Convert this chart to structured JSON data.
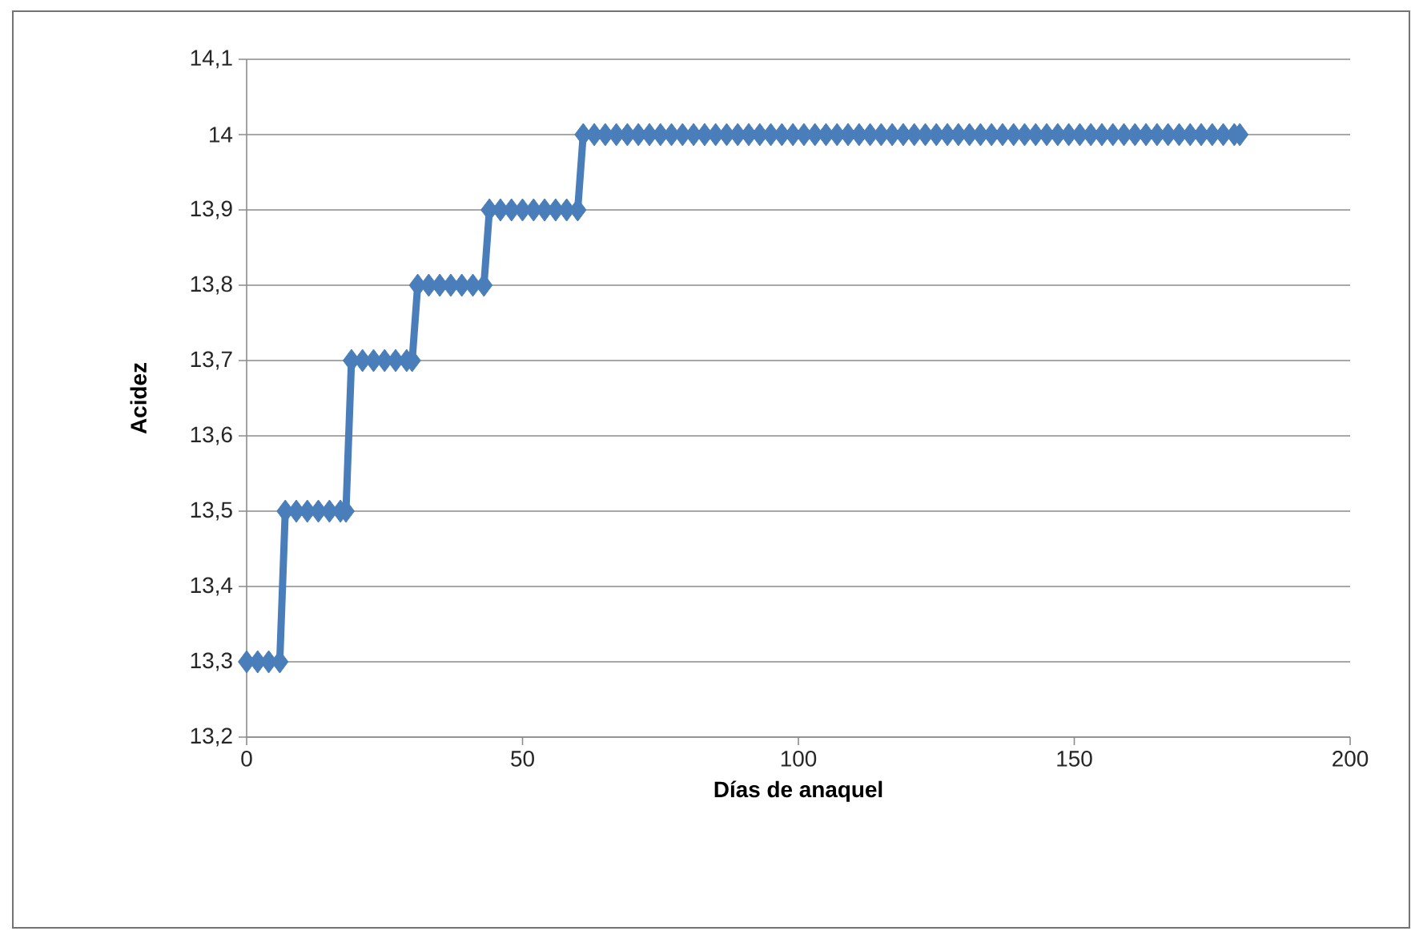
{
  "chart_data": {
    "type": "line",
    "xlabel": "Días de anaquel",
    "ylabel": "Acidez",
    "xlim": [
      0,
      200
    ],
    "xticks": [
      0,
      50,
      100,
      150,
      200
    ],
    "ylim": [
      13.2,
      14.1
    ],
    "yticks": [
      {
        "value": 13.2,
        "label": "13,2"
      },
      {
        "value": 13.3,
        "label": "13,3"
      },
      {
        "value": 13.4,
        "label": "13,4"
      },
      {
        "value": 13.5,
        "label": "13,5"
      },
      {
        "value": 13.6,
        "label": "13,6"
      },
      {
        "value": 13.7,
        "label": "13,7"
      },
      {
        "value": 13.8,
        "label": "13,8"
      },
      {
        "value": 13.9,
        "label": "13,9"
      },
      14,
      {
        "value": 14.1,
        "label": "14,1"
      }
    ],
    "grid": "y",
    "marker": "diamond",
    "line_style": "solid",
    "x": [
      0,
      2,
      4,
      6,
      7,
      9,
      11,
      13,
      15,
      17,
      18,
      19,
      21,
      23,
      25,
      27,
      29,
      30,
      31,
      33,
      35,
      37,
      39,
      41,
      43,
      44,
      46,
      48,
      50,
      52,
      54,
      56,
      58,
      60,
      61,
      63,
      65,
      67,
      69,
      71,
      73,
      75,
      77,
      79,
      81,
      83,
      85,
      87,
      89,
      91,
      93,
      95,
      97,
      99,
      101,
      103,
      105,
      107,
      109,
      111,
      113,
      115,
      117,
      119,
      121,
      123,
      125,
      127,
      129,
      131,
      133,
      135,
      137,
      139,
      141,
      143,
      145,
      147,
      149,
      151,
      153,
      155,
      157,
      159,
      161,
      163,
      165,
      167,
      169,
      171,
      173,
      175,
      177,
      179,
      180
    ],
    "series": [
      {
        "color": "#4a7ebb",
        "values": [
          13.3,
          13.3,
          13.3,
          13.3,
          13.5,
          13.5,
          13.5,
          13.5,
          13.5,
          13.5,
          13.5,
          13.7,
          13.7,
          13.7,
          13.7,
          13.7,
          13.7,
          13.7,
          13.8,
          13.8,
          13.8,
          13.8,
          13.8,
          13.8,
          13.8,
          13.9,
          13.9,
          13.9,
          13.9,
          13.9,
          13.9,
          13.9,
          13.9,
          13.9,
          14,
          14,
          14,
          14,
          14,
          14,
          14,
          14,
          14,
          14,
          14,
          14,
          14,
          14,
          14,
          14,
          14,
          14,
          14,
          14,
          14,
          14,
          14,
          14,
          14,
          14,
          14,
          14,
          14,
          14,
          14,
          14,
          14,
          14,
          14,
          14,
          14,
          14,
          14,
          14,
          14,
          14,
          14,
          14,
          14,
          14,
          14,
          14,
          14,
          14,
          14,
          14,
          14,
          14,
          14,
          14,
          14,
          14,
          14,
          14,
          14
        ]
      }
    ]
  }
}
